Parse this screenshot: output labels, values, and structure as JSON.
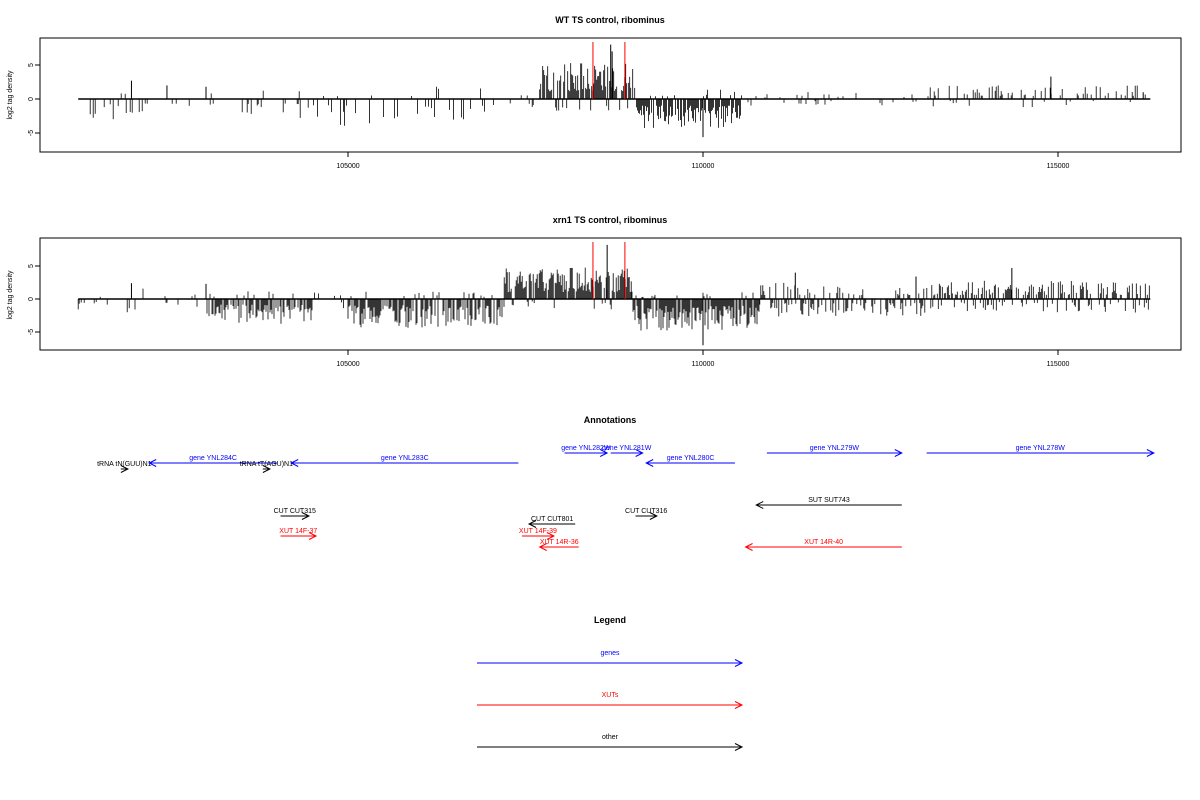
{
  "colors": {
    "axis": "#000000",
    "bars": "#000000",
    "marker": "#ff0000",
    "genes": "#0000ff",
    "xuts": "#ff0000",
    "other": "#000000"
  },
  "chart_data": [
    {
      "type": "bar",
      "title": "WT TS control, ribominus",
      "xlabel": "",
      "ylabel": "log2 tag density",
      "xlim": [
        101200,
        116300
      ],
      "ylim": [
        -7,
        8
      ],
      "xticks": [
        105000,
        110000,
        115000
      ],
      "yticks": [
        -5,
        0,
        5
      ],
      "grid": false,
      "markers_x": [
        108450,
        108900
      ],
      "bar_segments": [
        {
          "x0": 101200,
          "x1": 104500,
          "density": 0.16,
          "up": 1.2,
          "down": 2.6,
          "up_frac": 0.15
        },
        {
          "x0": 104500,
          "x1": 107200,
          "density": 0.18,
          "up": 1.6,
          "down": 3.5,
          "up_frac": 0.25
        },
        {
          "x0": 107200,
          "x1": 107700,
          "density": 0.12,
          "up": 0.8,
          "down": 1.2,
          "up_frac": 0.5
        },
        {
          "x0": 107700,
          "x1": 109050,
          "density": 0.85,
          "up": 4.6,
          "down": 1.5,
          "up_frac": 0.85
        },
        {
          "x0": 109050,
          "x1": 110550,
          "density": 0.9,
          "up": 1.5,
          "down": 3.8,
          "up_frac": 0.08
        },
        {
          "x0": 110550,
          "x1": 113200,
          "density": 0.14,
          "up": 1.0,
          "down": 1.2,
          "up_frac": 0.45
        },
        {
          "x0": 113200,
          "x1": 116300,
          "density": 0.3,
          "up": 1.8,
          "down": 1.2,
          "up_frac": 0.78
        }
      ],
      "spikes": [
        {
          "x": 101950,
          "y": 2.7
        },
        {
          "x": 102450,
          "y": 2.0
        },
        {
          "x": 103000,
          "y": 1.8
        },
        {
          "x": 108700,
          "y": 8.0
        },
        {
          "x": 108720,
          "y": 7.0
        },
        {
          "x": 110000,
          "y": -5.6
        },
        {
          "x": 114900,
          "y": 3.3
        },
        {
          "x": 116200,
          "y": 1.0
        }
      ]
    },
    {
      "type": "bar",
      "title": "xrn1 TS control, ribominus",
      "xlabel": "",
      "ylabel": "log2 tag density",
      "xlim": [
        101200,
        116300
      ],
      "ylim": [
        -7,
        8
      ],
      "xticks": [
        105000,
        110000,
        115000
      ],
      "yticks": [
        -5,
        0,
        5
      ],
      "grid": false,
      "markers_x": [
        108450,
        108900
      ],
      "bar_segments": [
        {
          "x0": 101200,
          "x1": 102000,
          "density": 0.12,
          "up": 1.0,
          "down": 1.8,
          "up_frac": 0.3
        },
        {
          "x0": 102000,
          "x1": 103000,
          "density": 0.14,
          "up": 1.5,
          "down": 1.4,
          "up_frac": 0.55
        },
        {
          "x0": 103000,
          "x1": 104500,
          "density": 0.75,
          "up": 1.0,
          "down": 3.4,
          "up_frac": 0.12
        },
        {
          "x0": 104500,
          "x1": 105000,
          "density": 0.2,
          "up": 1.6,
          "down": 1.2,
          "up_frac": 0.6
        },
        {
          "x0": 105000,
          "x1": 107200,
          "density": 0.85,
          "up": 1.2,
          "down": 3.8,
          "up_frac": 0.15
        },
        {
          "x0": 107200,
          "x1": 109000,
          "density": 0.95,
          "up": 4.2,
          "down": 1.5,
          "up_frac": 0.88
        },
        {
          "x0": 109000,
          "x1": 110800,
          "density": 0.95,
          "up": 1.2,
          "down": 4.2,
          "up_frac": 0.08
        },
        {
          "x0": 110800,
          "x1": 113300,
          "density": 0.6,
          "up": 2.2,
          "down": 2.4,
          "up_frac": 0.5
        },
        {
          "x0": 113300,
          "x1": 116300,
          "density": 0.7,
          "up": 2.4,
          "down": 1.8,
          "up_frac": 0.62
        }
      ],
      "spikes": [
        {
          "x": 101950,
          "y": 2.4
        },
        {
          "x": 103000,
          "y": 2.3
        },
        {
          "x": 108650,
          "y": 8.2
        },
        {
          "x": 110000,
          "y": -7.0
        },
        {
          "x": 114350,
          "y": 4.7
        },
        {
          "x": 111300,
          "y": 4.0
        },
        {
          "x": 113000,
          "y": 3.4
        }
      ]
    }
  ],
  "annotations": {
    "title": "Annotations",
    "features": [
      {
        "label": "tRNA tN(GUU)N1",
        "kind": "other",
        "x_from": 101800,
        "x_to": 101900,
        "row": 1
      },
      {
        "label": "gene YNL284C",
        "kind": "genes",
        "x_from": 104000,
        "x_to": 102200,
        "row": 0.5
      },
      {
        "label": "tRNA tT(AGU)N1",
        "kind": "other",
        "x_from": 103800,
        "x_to": 103900,
        "row": 1
      },
      {
        "label": "gene YNL283C",
        "kind": "genes",
        "x_from": 107400,
        "x_to": 104200,
        "row": 0.5
      },
      {
        "label": "gene YNL282W",
        "kind": "genes",
        "x_from": 108050,
        "x_to": 108650,
        "row": 0
      },
      {
        "label": "gene YNL281W",
        "kind": "genes",
        "x_from": 108700,
        "x_to": 109150,
        "row": 0
      },
      {
        "label": "gene YNL280C",
        "kind": "genes",
        "x_from": 110450,
        "x_to": 109200,
        "row": 0.5
      },
      {
        "label": "gene YNL279W",
        "kind": "genes",
        "x_from": 110900,
        "x_to": 112800,
        "row": 0
      },
      {
        "label": "gene YNL278W",
        "kind": "genes",
        "x_from": 113150,
        "x_to": 116350,
        "row": 0
      },
      {
        "label": "SUT SUT743",
        "kind": "other",
        "x_from": 112800,
        "x_to": 110750,
        "row": 2.5
      },
      {
        "label": "CUT CUT315",
        "kind": "other",
        "x_from": 104050,
        "x_to": 104450,
        "row": 3
      },
      {
        "label": "CUT CUT801",
        "kind": "other",
        "x_from": 108200,
        "x_to": 107550,
        "row": 3.5
      },
      {
        "label": "CUT CUT316",
        "kind": "other",
        "x_from": 109050,
        "x_to": 109350,
        "row": 3
      },
      {
        "label": "XUT 14F-37",
        "kind": "xuts",
        "x_from": 104050,
        "x_to": 104550,
        "row": 4
      },
      {
        "label": "XUT 14F-39",
        "kind": "xuts",
        "x_from": 107450,
        "x_to": 107900,
        "row": 4
      },
      {
        "label": "XUT 14R-36",
        "kind": "xuts",
        "x_from": 108250,
        "x_to": 107700,
        "row": 4.5
      },
      {
        "label": "XUT 14R-40",
        "kind": "xuts",
        "x_from": 112800,
        "x_to": 110600,
        "row": 4.5
      }
    ]
  },
  "legend": {
    "title": "Legend",
    "items": [
      {
        "label": "genes",
        "kind": "genes"
      },
      {
        "label": "XUTs",
        "kind": "xuts"
      },
      {
        "label": "other",
        "kind": "other"
      }
    ]
  }
}
